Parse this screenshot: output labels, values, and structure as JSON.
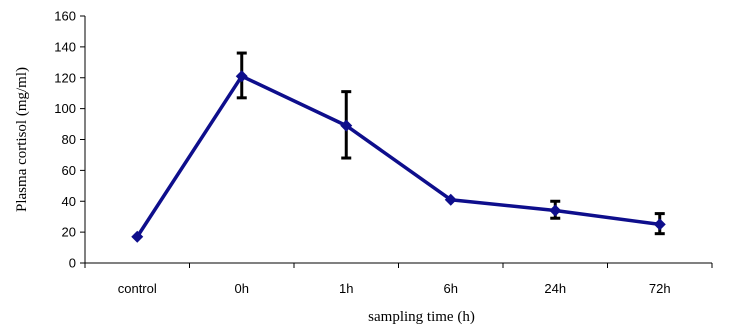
{
  "chart_data": {
    "type": "line",
    "title": "",
    "xlabel": "sampling time (h)",
    "ylabel": "Plasma cortisol (mg/ml)",
    "categories": [
      "control",
      "0h",
      "1h",
      "6h",
      "24h",
      "72h"
    ],
    "ylim": [
      0,
      160
    ],
    "yticks": [
      0,
      20,
      40,
      60,
      80,
      100,
      120,
      140,
      160
    ],
    "series": [
      {
        "values": [
          17,
          121,
          89,
          41,
          34,
          25
        ],
        "error_low": [
          17,
          107,
          68,
          41,
          29,
          19
        ],
        "error_high": [
          17,
          136,
          111,
          41,
          40,
          32
        ],
        "color": "#0e0e8c",
        "marker": "diamond"
      }
    ],
    "error_bar_color": "#000000",
    "grid": false,
    "legend": "none"
  }
}
